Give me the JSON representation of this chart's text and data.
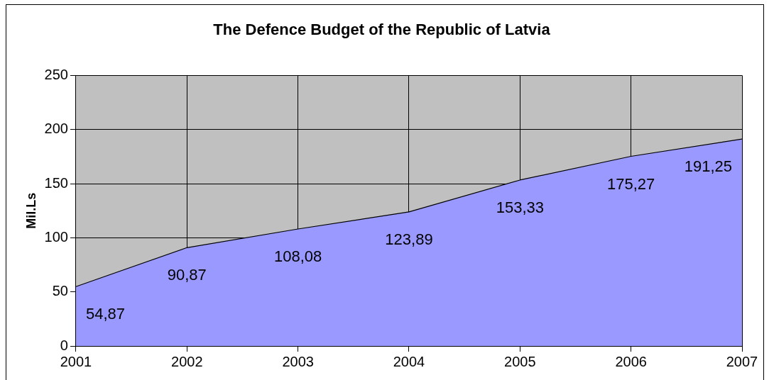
{
  "chart_data": {
    "type": "area",
    "title": "The Defence Budget of the Republic of Latvia",
    "ylabel": "Mil.Ls",
    "x": [
      2001,
      2002,
      2003,
      2004,
      2005,
      2006,
      2007
    ],
    "series": [
      {
        "color": "#9999ff",
        "values": [
          54.87,
          90.87,
          108.08,
          123.89,
          153.33,
          175.27,
          191.25
        ],
        "value_labels": [
          "54,87",
          "90,87",
          "108,08",
          "123,89",
          "153,33",
          "175,27",
          "191,25"
        ]
      }
    ],
    "xlim": [
      2001,
      2007
    ],
    "xticks": [
      2001,
      2002,
      2003,
      2004,
      2005,
      2006,
      2007
    ],
    "ylim": [
      0,
      250
    ],
    "yticks": [
      0,
      50,
      100,
      150,
      200,
      250
    ],
    "grid": true,
    "legend": false
  }
}
